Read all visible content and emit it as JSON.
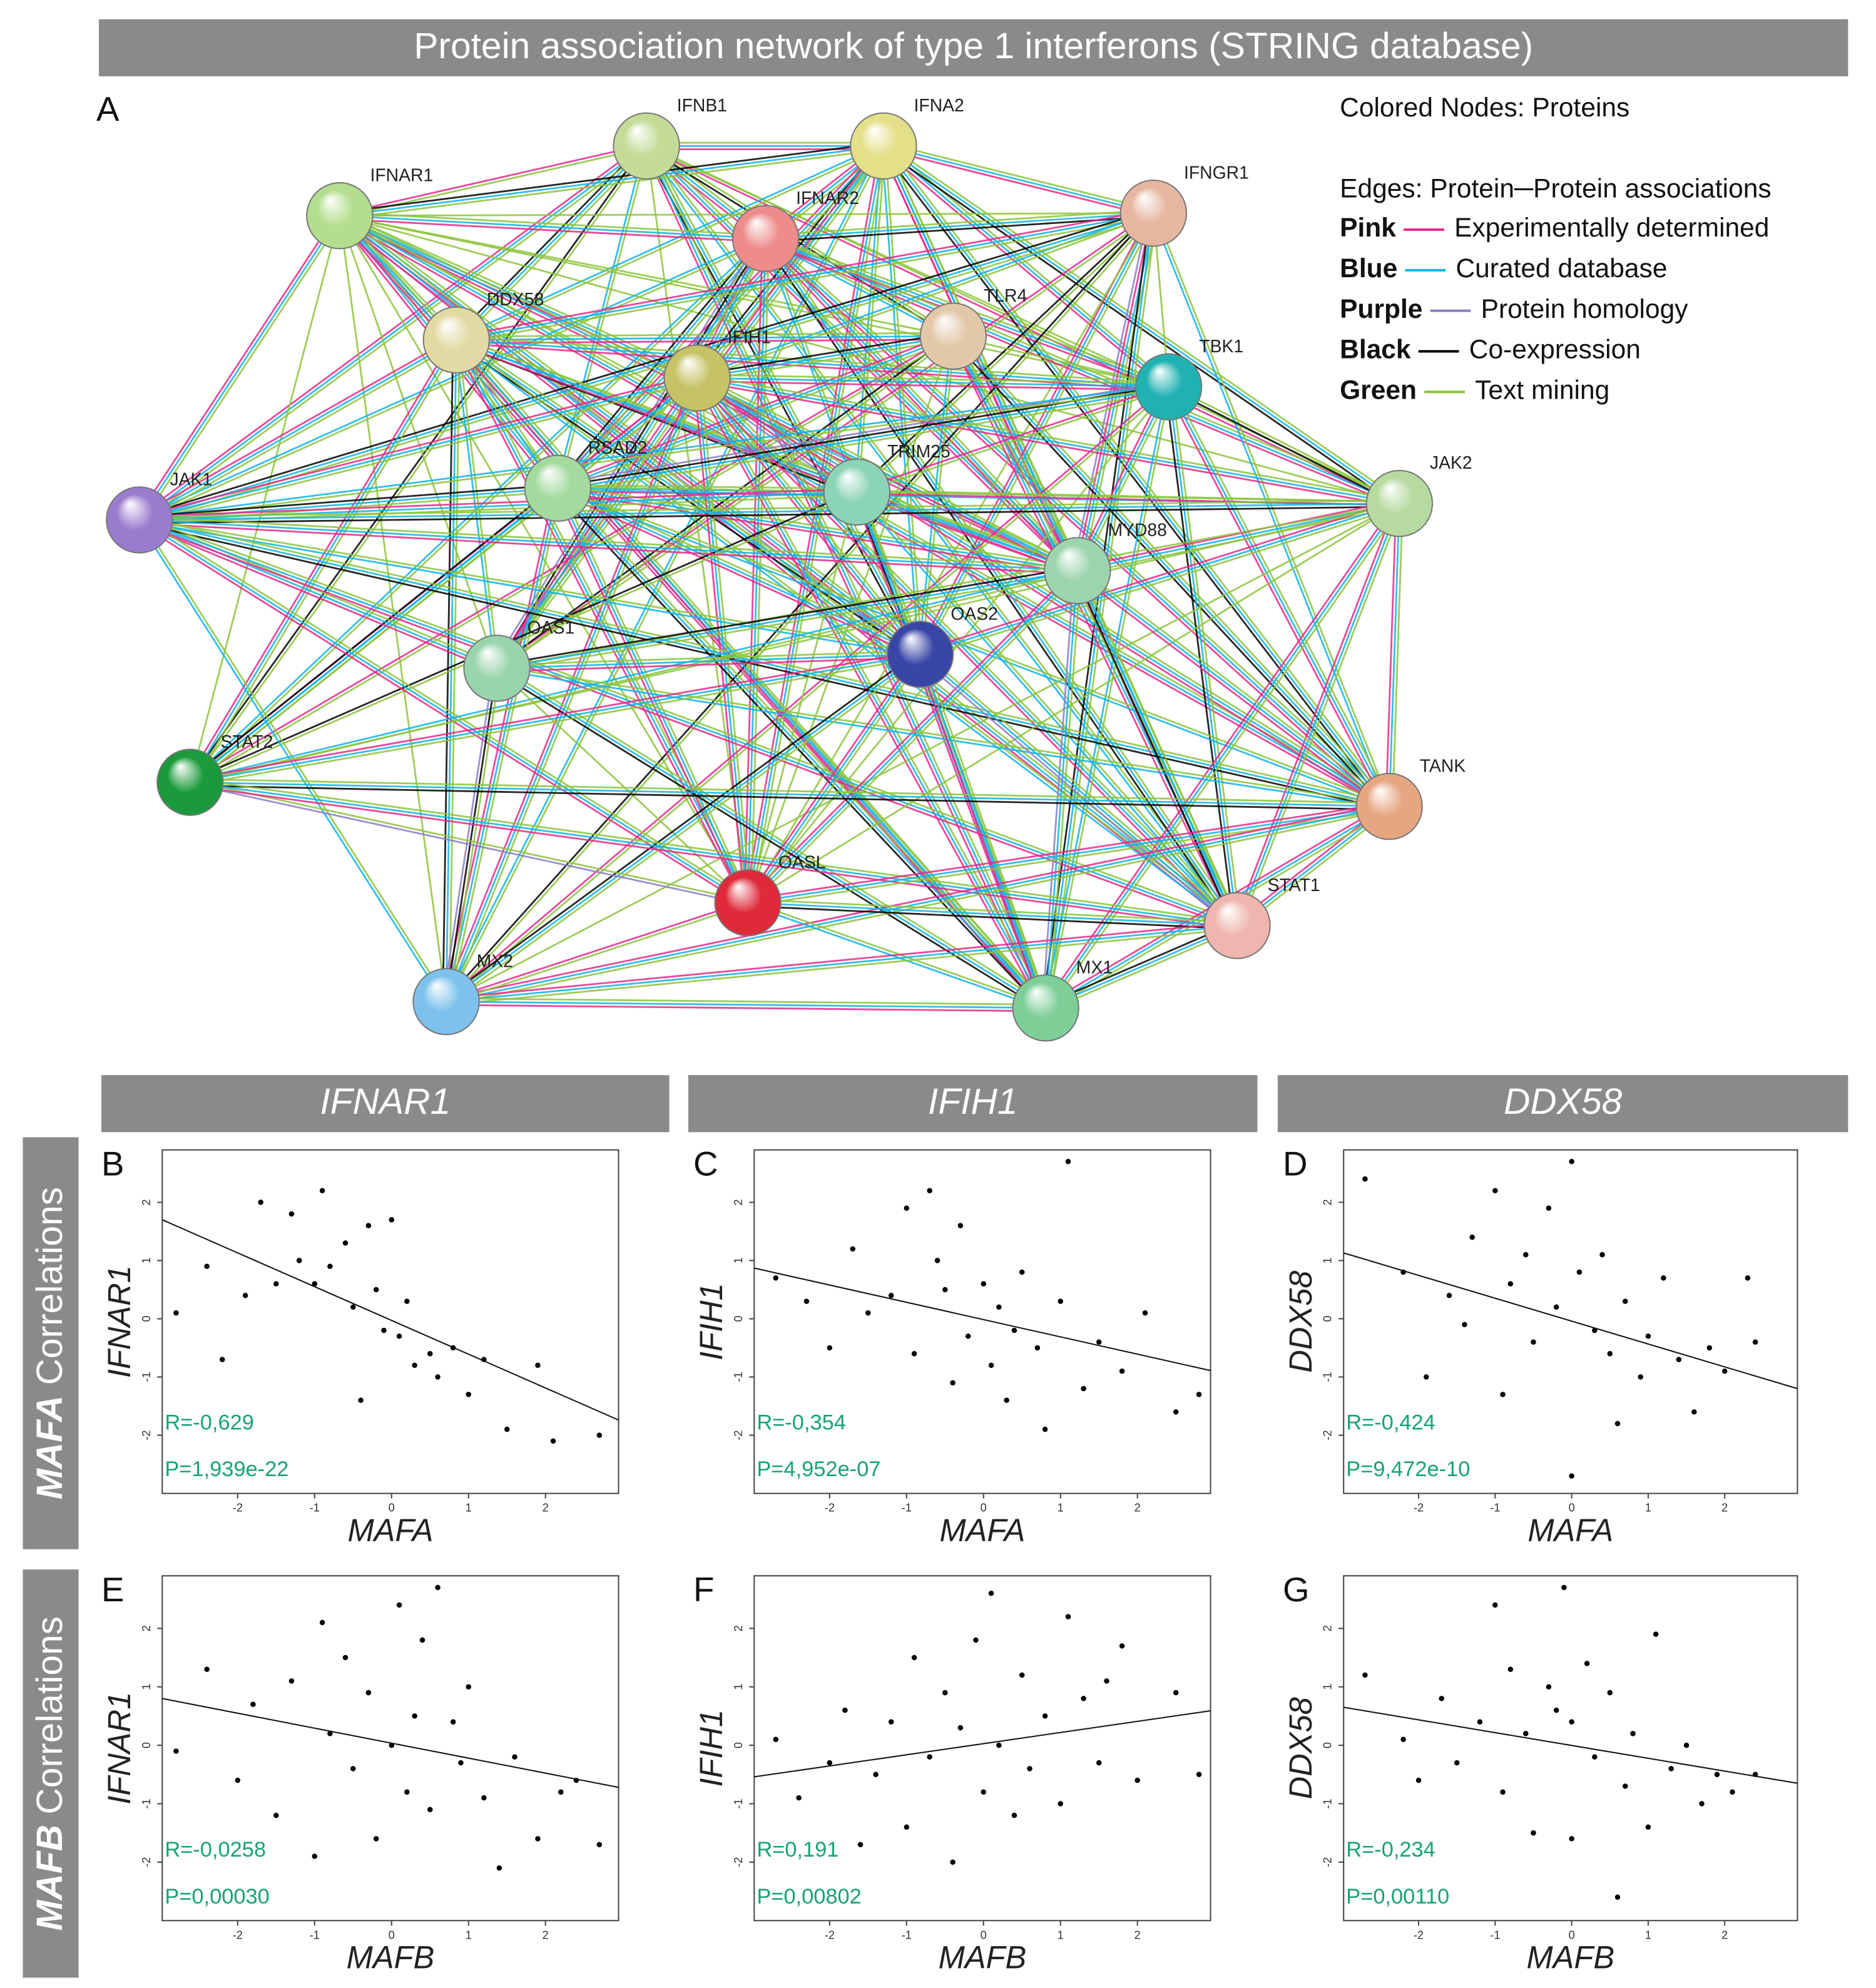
{
  "title": "Protein association network of type 1 interferons (STRING database)",
  "network": {
    "panel": "A",
    "nodes": [
      {
        "label": "IFNB1",
        "color": "#c4dc98"
      },
      {
        "label": "IFNA2",
        "color": "#e4e08a"
      },
      {
        "label": "IFNAR1",
        "color": "#b4de8e"
      },
      {
        "label": "IFNAR2",
        "color": "#ee8c8c"
      },
      {
        "label": "IFNGR1",
        "color": "#e6b6a0"
      },
      {
        "label": "DDX58",
        "color": "#e2daa4"
      },
      {
        "label": "TLR4",
        "color": "#e2c8a8"
      },
      {
        "label": "IFIH1",
        "color": "#c6c266"
      },
      {
        "label": "TBK1",
        "color": "#20b2b2"
      },
      {
        "label": "RSAD2",
        "color": "#a4da9e"
      },
      {
        "label": "TRIM25",
        "color": "#8cd4b6"
      },
      {
        "label": "JAK1",
        "color": "#9a7ccf"
      },
      {
        "label": "JAK2",
        "color": "#b6daa0"
      },
      {
        "label": "MYD88",
        "color": "#9cd4ae"
      },
      {
        "label": "OAS1",
        "color": "#98d4ac"
      },
      {
        "label": "OAS2",
        "color": "#3a46a6"
      },
      {
        "label": "STAT2",
        "color": "#1a9a3a"
      },
      {
        "label": "TANK",
        "color": "#e6a682"
      },
      {
        "label": "OASL",
        "color": "#de2a3a"
      },
      {
        "label": "STAT1",
        "color": "#eeb6ae"
      },
      {
        "label": "MX2",
        "color": "#7cc2ec"
      },
      {
        "label": "MX1",
        "color": "#7ece98"
      }
    ],
    "legend": {
      "nodes_text": "Colored Nodes: Proteins",
      "edges_text": "Edges: Protein─Protein associations",
      "items": [
        {
          "name": "Pink",
          "color": "#e8288c",
          "text": "Experimentally determined"
        },
        {
          "name": "Blue",
          "color": "#12b4e6",
          "text": "Curated database"
        },
        {
          "name": "Purple",
          "color": "#8c7cc8",
          "text": "Protein homology"
        },
        {
          "name": "Black",
          "color": "#000000",
          "text": "Co-expression"
        },
        {
          "name": "Green",
          "color": "#8cc43c",
          "text": "Text mining"
        }
      ]
    }
  },
  "column_headers": [
    "IFNAR1",
    "IFIH1",
    "DDX58"
  ],
  "row_headers": [
    {
      "gene": "MAFA",
      "text": " Correlations"
    },
    {
      "gene": "MAFB",
      "text": " Correlations"
    }
  ],
  "chart_data": [
    {
      "type": "scatter",
      "panel": "B",
      "xlabel": "MAFA",
      "ylabel": "IFNAR1",
      "annotations": [
        "R=-0,629",
        "P=1,939e-22"
      ],
      "xlim": [
        -2.98,
        2.95
      ],
      "ylim": [
        -3,
        2.9
      ],
      "xticks": [
        -2,
        -1,
        0,
        1,
        2
      ],
      "yticks": [
        -2,
        -1,
        0,
        1,
        2
      ],
      "x": [
        -2.8,
        -2.4,
        -2.2,
        -1.9,
        -1.7,
        -1.5,
        -1.3,
        -1.2,
        -1.0,
        -0.9,
        -0.8,
        -0.6,
        -0.5,
        -0.4,
        -0.3,
        -0.2,
        -0.1,
        0.0,
        0.1,
        0.2,
        0.3,
        0.5,
        0.6,
        0.8,
        1.0,
        1.2,
        1.5,
        1.9,
        2.1,
        2.7
      ],
      "y": [
        0.1,
        0.9,
        -0.7,
        0.4,
        2.0,
        0.6,
        1.8,
        1.0,
        0.6,
        2.2,
        0.9,
        1.3,
        0.2,
        -1.4,
        1.6,
        0.5,
        -0.2,
        1.7,
        -0.3,
        0.3,
        -0.8,
        -0.6,
        -1.0,
        -0.5,
        -1.3,
        -0.7,
        -1.9,
        -0.8,
        -2.1,
        -2.0
      ],
      "fit": {
        "x": [
          -2.98,
          2.95
        ],
        "y": [
          1.7,
          -1.74
        ]
      }
    },
    {
      "type": "scatter",
      "panel": "C",
      "xlabel": "MAFA",
      "ylabel": "IFIH1",
      "annotations": [
        "R=-0,354",
        "P=4,952e-07"
      ],
      "xlim": [
        -2.98,
        2.95
      ],
      "ylim": [
        -3,
        2.9
      ],
      "xticks": [
        -2,
        -1,
        0,
        1,
        2
      ],
      "yticks": [
        -2,
        -1,
        0,
        1,
        2
      ],
      "x": [
        -2.7,
        -2.3,
        -2.0,
        -1.7,
        -1.5,
        -1.2,
        -1.0,
        -0.9,
        -0.7,
        -0.6,
        -0.5,
        -0.4,
        -0.3,
        -0.2,
        0.0,
        0.1,
        0.2,
        0.3,
        0.4,
        0.5,
        0.7,
        0.8,
        1.0,
        1.1,
        1.3,
        1.5,
        1.8,
        2.1,
        2.5,
        2.8
      ],
      "y": [
        0.7,
        0.3,
        -0.5,
        1.2,
        0.1,
        0.4,
        1.9,
        -0.6,
        2.2,
        1.0,
        0.5,
        -1.1,
        1.6,
        -0.3,
        0.6,
        -0.8,
        0.2,
        -1.4,
        -0.2,
        0.8,
        -0.5,
        -1.9,
        0.3,
        2.7,
        -1.2,
        -0.4,
        -0.9,
        0.1,
        -1.6,
        -1.3
      ],
      "fit": {
        "x": [
          -2.98,
          2.95
        ],
        "y": [
          0.87,
          -0.89
        ]
      }
    },
    {
      "type": "scatter",
      "panel": "D",
      "xlabel": "MAFA",
      "ylabel": "DDX58",
      "annotations": [
        "R=-0,424",
        "P=9,472e-10"
      ],
      "xlim": [
        -2.98,
        2.95
      ],
      "ylim": [
        -3,
        2.9
      ],
      "xticks": [
        -2,
        -1,
        0,
        1,
        2
      ],
      "yticks": [
        -2,
        -1,
        0,
        1,
        2
      ],
      "x": [
        -2.7,
        -2.2,
        -1.9,
        -1.6,
        -1.3,
        -1.0,
        -0.9,
        -0.8,
        -0.6,
        -0.5,
        -0.3,
        -0.2,
        0.0,
        0.0,
        0.1,
        0.3,
        0.4,
        0.5,
        0.7,
        0.9,
        1.0,
        1.2,
        1.4,
        1.6,
        1.8,
        2.0,
        2.3,
        2.4,
        -1.4,
        0.6
      ],
      "y": [
        2.4,
        0.8,
        -1.0,
        0.4,
        1.4,
        2.2,
        -1.3,
        0.6,
        1.1,
        -0.4,
        1.9,
        0.2,
        2.7,
        -2.7,
        0.8,
        -0.2,
        1.1,
        -0.6,
        0.3,
        -1.0,
        -0.3,
        0.7,
        -0.7,
        -1.6,
        -0.5,
        -0.9,
        0.7,
        -0.4,
        -0.1,
        -1.8
      ],
      "fit": {
        "x": [
          -2.98,
          2.95
        ],
        "y": [
          1.13,
          -1.2
        ]
      }
    },
    {
      "type": "scatter",
      "panel": "E",
      "xlabel": "MAFB",
      "ylabel": "IFNAR1",
      "annotations": [
        "R=-0,0258",
        "P=0,00030"
      ],
      "xlim": [
        -2.98,
        2.95
      ],
      "ylim": [
        -3,
        2.9
      ],
      "xticks": [
        -2,
        -1,
        0,
        1,
        2
      ],
      "yticks": [
        -2,
        -1,
        0,
        1,
        2
      ],
      "x": [
        -2.8,
        -2.4,
        -2.0,
        -1.8,
        -1.5,
        -1.3,
        -1.0,
        -0.9,
        -0.8,
        -0.6,
        -0.5,
        -0.3,
        -0.2,
        0.0,
        0.1,
        0.2,
        0.3,
        0.4,
        0.5,
        0.6,
        0.8,
        0.9,
        1.0,
        1.2,
        1.4,
        1.6,
        1.9,
        2.2,
        2.4,
        2.7
      ],
      "y": [
        -0.1,
        1.3,
        -0.6,
        0.7,
        -1.2,
        1.1,
        -1.9,
        2.1,
        0.2,
        1.5,
        -0.4,
        0.9,
        -1.6,
        0.0,
        2.4,
        -0.8,
        0.5,
        1.8,
        -1.1,
        2.7,
        0.4,
        -0.3,
        1.0,
        -0.9,
        -2.1,
        -0.2,
        -1.6,
        -0.8,
        -0.6,
        -1.7
      ],
      "fit": {
        "x": [
          -2.98,
          2.95
        ],
        "y": [
          0.8,
          -0.72
        ]
      }
    },
    {
      "type": "scatter",
      "panel": "F",
      "xlabel": "MAFB",
      "ylabel": "IFIH1",
      "annotations": [
        "R=0,191",
        "P=0,00802"
      ],
      "xlim": [
        -2.98,
        2.95
      ],
      "ylim": [
        -3,
        2.9
      ],
      "xticks": [
        -2,
        -1,
        0,
        1,
        2
      ],
      "yticks": [
        -2,
        -1,
        0,
        1,
        2
      ],
      "x": [
        -2.7,
        -2.4,
        -2.0,
        -1.8,
        -1.6,
        -1.4,
        -1.2,
        -1.0,
        -0.9,
        -0.7,
        -0.5,
        -0.4,
        -0.3,
        -0.1,
        0.0,
        0.1,
        0.2,
        0.4,
        0.5,
        0.6,
        0.8,
        1.0,
        1.1,
        1.3,
        1.5,
        1.6,
        1.8,
        2.0,
        2.5,
        2.8
      ],
      "y": [
        0.1,
        -0.9,
        -0.3,
        0.6,
        -1.7,
        -0.5,
        0.4,
        -1.4,
        1.5,
        -0.2,
        0.9,
        -2.0,
        0.3,
        1.8,
        -0.8,
        2.6,
        0.0,
        -1.2,
        1.2,
        -0.4,
        0.5,
        -1.0,
        2.2,
        0.8,
        -0.3,
        1.1,
        1.7,
        -0.6,
        0.9,
        -0.5
      ],
      "fit": {
        "x": [
          -2.98,
          2.95
        ],
        "y": [
          -0.54,
          0.59
        ]
      }
    },
    {
      "type": "scatter",
      "panel": "G",
      "xlabel": "MAFB",
      "ylabel": "DDX58",
      "annotations": [
        "R=-0,234",
        "P=0,00110"
      ],
      "xlim": [
        -2.98,
        2.95
      ],
      "ylim": [
        -3,
        2.9
      ],
      "xticks": [
        -2,
        -1,
        0,
        1,
        2
      ],
      "yticks": [
        -2,
        -1,
        0,
        1,
        2
      ],
      "x": [
        -2.7,
        -2.2,
        -2.0,
        -1.7,
        -1.5,
        -1.2,
        -1.0,
        -0.9,
        -0.8,
        -0.6,
        -0.5,
        -0.3,
        -0.2,
        0.0,
        0.0,
        0.2,
        0.3,
        0.5,
        0.7,
        0.8,
        1.0,
        1.1,
        1.3,
        1.5,
        1.7,
        1.9,
        2.1,
        2.4,
        -0.1,
        0.6
      ],
      "y": [
        1.2,
        0.1,
        -0.6,
        0.8,
        -0.3,
        0.4,
        2.4,
        -0.8,
        1.3,
        0.2,
        -1.5,
        1.0,
        0.6,
        -1.6,
        0.4,
        1.4,
        -0.2,
        0.9,
        -0.7,
        0.2,
        -1.4,
        1.9,
        -0.4,
        0.0,
        -1.0,
        -0.5,
        -0.8,
        -0.5,
        2.7,
        -2.6
      ],
      "fit": {
        "x": [
          -2.98,
          2.95
        ],
        "y": [
          0.65,
          -0.65
        ]
      }
    }
  ]
}
